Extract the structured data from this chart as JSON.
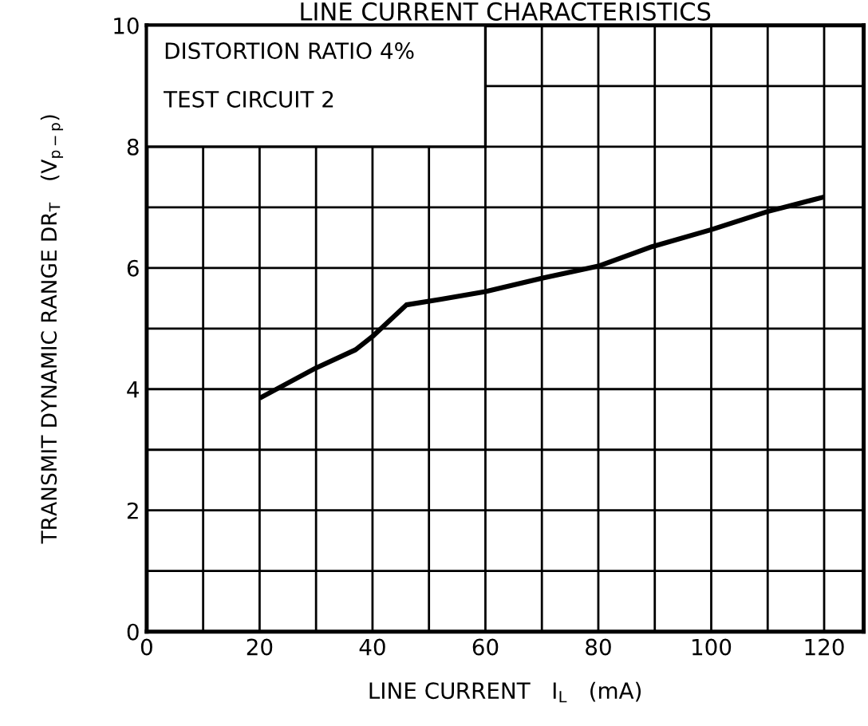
{
  "chart_data": {
    "type": "line",
    "title": "LINE CURRENT CHARACTERISTICS",
    "xlabel": "LINE CURRENT   I$_{L}$   (mA)",
    "ylabel": "TRANSMIT DYNAMIC RANGE DR$_{T}$   (V$_{p−p}$)",
    "annotations": [
      "DISTORTION RATIO 4%",
      "TEST CIRCUIT 2"
    ],
    "x": [
      20,
      30,
      37,
      40,
      46,
      52,
      60,
      70,
      80,
      89.5,
      100,
      110,
      120
    ],
    "series": [
      {
        "color": "#000000",
        "values": [
          3.85,
          4.35,
          4.65,
          4.87,
          5.39,
          5.48,
          5.61,
          5.83,
          6.03,
          6.35,
          6.63,
          6.93,
          7.17
        ]
      }
    ],
    "xlim": [
      0,
      127
    ],
    "ylim": [
      0,
      10
    ],
    "xticks": [
      0,
      {
        "value": 10,
        "label": null
      },
      20,
      {
        "value": 30,
        "label": null
      },
      40,
      {
        "value": 50,
        "label": null
      },
      60,
      {
        "value": 70,
        "label": null
      },
      80,
      {
        "value": 90,
        "label": null
      },
      100,
      {
        "value": 110,
        "label": null
      },
      120
    ],
    "yticks": [
      0,
      {
        "value": 1,
        "label": null
      },
      2,
      {
        "value": 3,
        "label": null
      },
      4,
      {
        "value": 5,
        "label": null
      },
      6,
      {
        "value": 7,
        "label": null
      },
      8,
      {
        "value": 9,
        "label": null
      },
      10
    ],
    "grid": true,
    "legend": false,
    "marker": "none",
    "line_style": "solid"
  }
}
